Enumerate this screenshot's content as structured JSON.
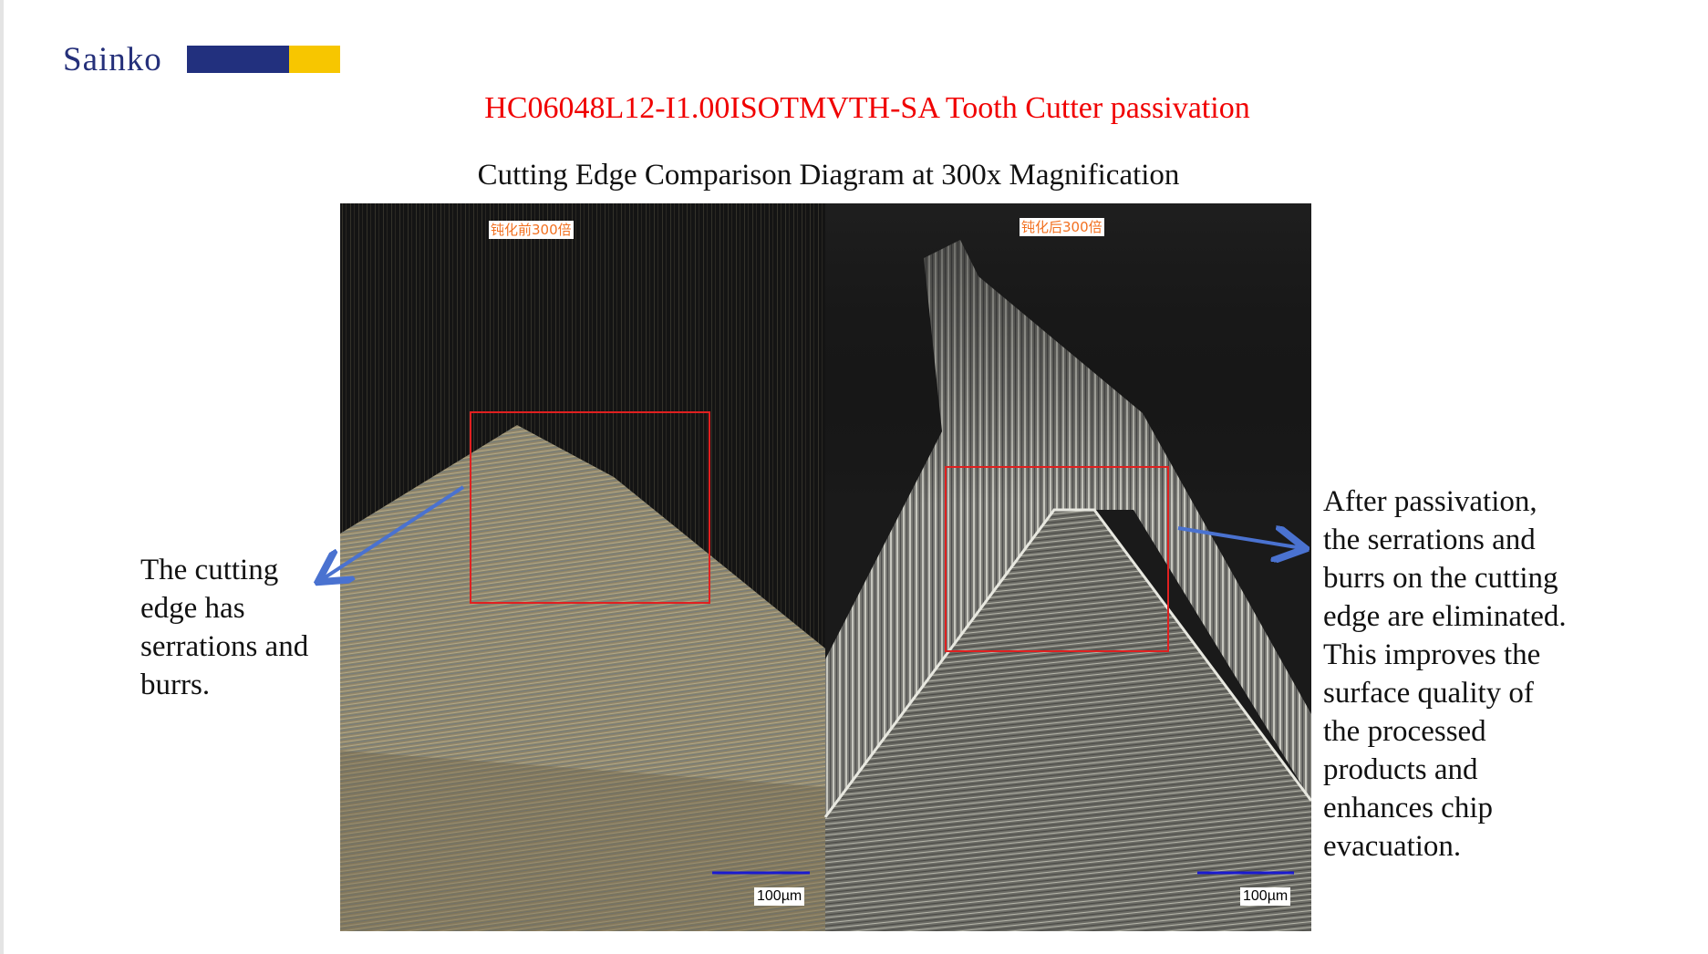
{
  "logo": {
    "text": "Sainko",
    "colors": {
      "blue": "#22307e",
      "yellow": "#f7c600"
    }
  },
  "title": "HC06048L12-I1.00ISOTMVTH-SA Tooth Cutter passivation",
  "subtitle": "Cutting Edge Comparison Diagram at 300x Magnification",
  "photos": [
    {
      "label": "钝化前300倍",
      "scale": "100µm"
    },
    {
      "label": "钝化后300倍",
      "scale": "100µm"
    }
  ],
  "notes": {
    "left": [
      "The cutting",
      "edge has",
      "serrations and",
      "burrs."
    ],
    "right": [
      "After passivation,",
      "the serrations and",
      "burrs on the cutting",
      "edge are eliminated.",
      "This improves the",
      "surface quality of",
      "the processed",
      "products and",
      "enhances chip",
      "evacuation."
    ]
  },
  "colors": {
    "title": "#f00000",
    "highlight_box": "#e02020",
    "arrow": "#4a72d0",
    "scale_bar": "#1a1ad0"
  }
}
